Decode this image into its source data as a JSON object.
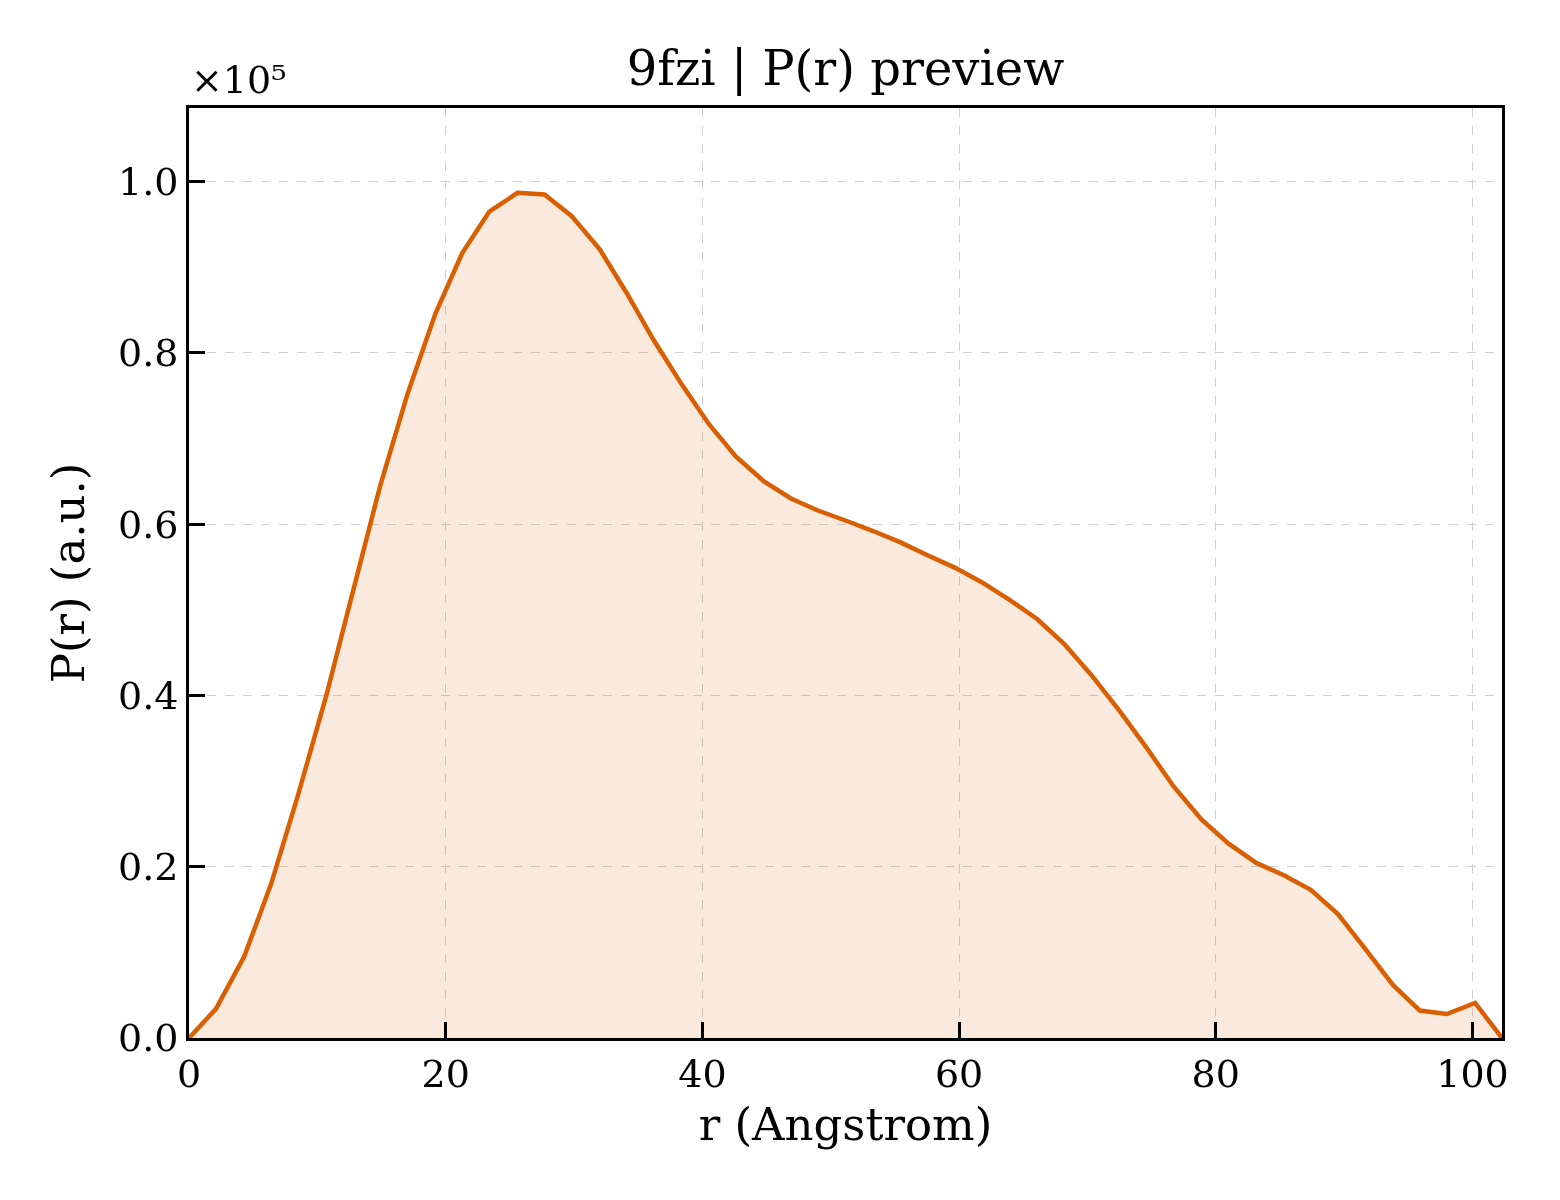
{
  "chart_data": {
    "type": "area",
    "title": "9fzi | P(r) preview",
    "xlabel": "r (Angstrom)",
    "ylabel": "P(r) (a.u.)",
    "annotations": [
      "×10⁵"
    ],
    "x": [
      0,
      2.1,
      4.3,
      6.4,
      8.5,
      10.7,
      12.8,
      14.9,
      17.0,
      19.2,
      21.3,
      23.4,
      25.6,
      27.7,
      29.8,
      32.0,
      34.1,
      36.2,
      38.4,
      40.5,
      42.6,
      44.8,
      46.9,
      49.0,
      51.2,
      53.3,
      55.4,
      57.5,
      59.7,
      61.8,
      63.9,
      66.1,
      68.2,
      70.3,
      72.5,
      74.6,
      76.7,
      78.9,
      81.0,
      83.1,
      85.3,
      87.4,
      89.5,
      91.6,
      93.8,
      95.9,
      98.0,
      100.2,
      102.3
    ],
    "series": [
      {
        "color": "#d95f02",
        "values": [
          0,
          0.034,
          0.095,
          0.18,
          0.284,
          0.4,
          0.523,
          0.645,
          0.751,
          0.846,
          0.917,
          0.965,
          0.987,
          0.985,
          0.96,
          0.921,
          0.87,
          0.815,
          0.763,
          0.717,
          0.679,
          0.65,
          0.63,
          0.616,
          0.604,
          0.592,
          0.579,
          0.564,
          0.549,
          0.532,
          0.512,
          0.489,
          0.46,
          0.424,
          0.382,
          0.339,
          0.294,
          0.255,
          0.227,
          0.205,
          0.19,
          0.173,
          0.145,
          0.105,
          0.062,
          0.032,
          0.028,
          0.041,
          0
        ]
      }
    ],
    "xlim": [
      0,
      102.3
    ],
    "ylim": [
      0,
      1.086
    ],
    "xticks": [
      0,
      20,
      40,
      60,
      80,
      100
    ],
    "yticks": [
      {
        "value": 0,
        "label": "0.0"
      },
      0.2,
      0.4,
      0.6,
      0.8,
      {
        "value": 1,
        "label": "1.0"
      }
    ],
    "grid": true
  }
}
